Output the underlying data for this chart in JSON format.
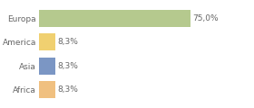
{
  "categories": [
    "Africa",
    "Asia",
    "America",
    "Europa"
  ],
  "values": [
    8.3,
    8.3,
    8.3,
    75.0
  ],
  "bar_colors": [
    "#f0c080",
    "#7b96c4",
    "#f0d070",
    "#b5c98e"
  ],
  "label_texts": [
    "8,3%",
    "8,3%",
    "8,3%",
    "75,0%"
  ],
  "xlim": [
    0,
    105
  ],
  "background_color": "#ffffff",
  "bar_height": 0.72,
  "label_fontsize": 6.5,
  "tick_fontsize": 6.5,
  "text_color": "#666666",
  "grid_color": "#dddddd",
  "figsize": [
    2.8,
    1.2
  ],
  "dpi": 100
}
